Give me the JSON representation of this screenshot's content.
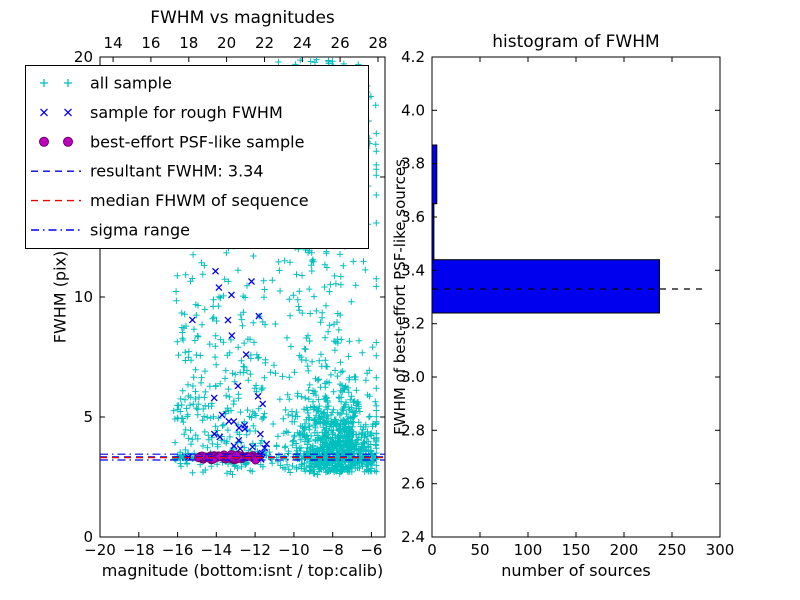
{
  "figure": {
    "background": "#ffffff"
  },
  "chart_data": [
    {
      "id": "fwhm-vs-magnitudes",
      "type": "scatter",
      "title": "FWHM vs magnitudes",
      "xlabel": "magnitude (bottom:isnt / top:calib)",
      "ylabel": "FWHM (pix)",
      "xlim": [
        -20,
        -5.3
      ],
      "ylim": [
        0,
        20
      ],
      "x2lim": [
        13.31,
        28.37
      ],
      "xticks": [
        -20,
        -18,
        -16,
        -14,
        -12,
        -10,
        -8,
        -6
      ],
      "x2ticks": [
        14,
        16,
        18,
        20,
        22,
        24,
        26,
        28
      ],
      "yticks": [
        0,
        5,
        10,
        15,
        20
      ],
      "legend": [
        {
          "label": "all sample",
          "marker": "plus",
          "color": "#00bfbf"
        },
        {
          "label": "sample for rough FWHM",
          "marker": "x",
          "color": "#0000ee"
        },
        {
          "label": "best-effort PSF-like sample",
          "marker": "circle",
          "color": "#bf00bf",
          "edge": "#6a006a"
        },
        {
          "label": "resultant FWHM: 3.34",
          "marker": "line-dashed",
          "color": "#0000ee"
        },
        {
          "label": "median FHWM of sequence",
          "marker": "line-dashed",
          "color": "#ee0000"
        },
        {
          "label": "sigma range",
          "marker": "line-dashdot",
          "color": "#0000ee"
        }
      ],
      "hlines": [
        {
          "y": 3.34,
          "style": "dashed",
          "color": "#0000ee"
        },
        {
          "y": 3.31,
          "style": "dashed",
          "color": "#ee0000"
        },
        {
          "y": 3.45,
          "style": "dashdot",
          "color": "#0000ee"
        },
        {
          "y": 3.21,
          "style": "dashdot",
          "color": "#0000ee"
        }
      ],
      "series": [
        {
          "name": "all sample",
          "marker": "plus",
          "color": "#00bfbf",
          "clusters": [
            {
              "n": 750,
              "x": {
                "dist": "normal",
                "mu": -7.9,
                "sd": 1.1,
                "min": -11.4,
                "max": -5.75
              },
              "y": {
                "dist": "halfnormal",
                "base": 2.7,
                "sd": 1.7,
                "min": 2.2,
                "max": 13.5
              }
            },
            {
              "n": 330,
              "x": {
                "dist": "normal",
                "mu": -8.4,
                "sd": 1.6,
                "min": -12.6,
                "max": -5.75
              },
              "y": {
                "dist": "uniform",
                "min": 2.6,
                "max": 19.9
              }
            },
            {
              "n": 280,
              "x": {
                "dist": "uniform",
                "min": -16.2,
                "max": -11.4
              },
              "y": {
                "dist": "halfnormal",
                "base": 2.6,
                "sd": 4.5,
                "min": 2.2,
                "max": 19.9
              }
            },
            {
              "n": 170,
              "x": {
                "dist": "uniform",
                "min": -16.2,
                "max": -5.75
              },
              "y": {
                "dist": "normal",
                "mu": 3.3,
                "sd": 0.15,
                "min": 2.8,
                "max": 3.9
              }
            },
            {
              "n": 80,
              "x": {
                "dist": "uniform",
                "min": -12.5,
                "max": -6.0
              },
              "y": {
                "dist": "uniform",
                "min": 13.0,
                "max": 19.9
              }
            }
          ]
        },
        {
          "name": "sample for rough FWHM",
          "marker": "x",
          "color": "#0000ee",
          "clusters": [
            {
              "n": 26,
              "x": {
                "dist": "uniform",
                "min": -15.6,
                "max": -11.3
              },
              "y": {
                "dist": "halfnormal",
                "base": 3.1,
                "sd": 1.6,
                "min": 3.0,
                "max": 7.6
              }
            },
            {
              "n": 8,
              "x": {
                "dist": "uniform",
                "min": -15.3,
                "max": -11.6
              },
              "y": {
                "dist": "uniform",
                "min": 7.6,
                "max": 11.3
              }
            }
          ]
        },
        {
          "name": "best-effort PSF-like sample",
          "marker": "circle",
          "color": "#bf00bf",
          "edge": "#6a006a",
          "clusters": [
            {
              "n": 55,
              "x": {
                "dist": "uniform",
                "min": -15.1,
                "max": -11.85
              },
              "y": {
                "dist": "normal",
                "mu": 3.32,
                "sd": 0.045,
                "min": 3.2,
                "max": 3.45
              }
            }
          ]
        }
      ]
    },
    {
      "id": "fwhm-histogram",
      "type": "bar-horizontal",
      "title": "histogram of FWHM",
      "xlabel": "number of sources",
      "ylabel": "FWHM of best-effort PSF-like sources",
      "xlim": [
        0,
        300
      ],
      "ylim": [
        2.4,
        4.2
      ],
      "xticks": [
        0,
        50,
        100,
        150,
        200,
        250,
        300
      ],
      "yticks": [
        2.4,
        2.6,
        2.8,
        3.0,
        3.2,
        3.4,
        3.6,
        3.8,
        4.0,
        4.2
      ],
      "bar_color": "#0000ee",
      "bars": [
        {
          "from": 3.24,
          "to": 3.44,
          "count": 237
        },
        {
          "from": 3.44,
          "to": 3.65,
          "count": 2
        },
        {
          "from": 3.65,
          "to": 3.87,
          "count": 5
        }
      ],
      "hline": {
        "y": 3.33,
        "x_end": 285,
        "style": "dashed",
        "color": "#000000"
      }
    }
  ]
}
